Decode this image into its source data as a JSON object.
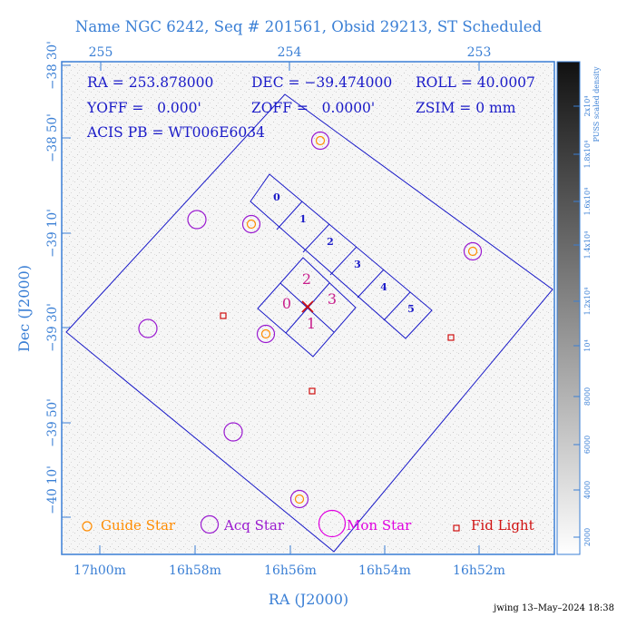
{
  "title": "Name NGC 6242, Seq # 201561, Obsid 29213, ST Scheduled",
  "header": {
    "ra": "RA = 253.878000",
    "dec": "DEC = −39.474000",
    "roll": "ROLL = 40.0007",
    "yoff": "YOFF =   0.000'",
    "zoff": "ZOFF =   0.0000'",
    "zsim": "ZSIM = 0 mm",
    "acis": "ACIS PB = WT006E6034"
  },
  "top_ticks": [
    "255",
    "254",
    "253"
  ],
  "left_ticks": [
    "−38 30'",
    "−38 50'",
    "−39 10'",
    "−39 30'",
    "−39 50'",
    "−40 10'"
  ],
  "bottom_ticks": [
    "17h00m",
    "16h58m",
    "16h56m",
    "16h54m",
    "16h52m"
  ],
  "xlabel": "RA (J2000)",
  "ylabel": "Dec (J2000)",
  "colorbar": {
    "label": "PUSS scaled density",
    "ticks": [
      "2000",
      "4000",
      "6000",
      "8000",
      "10⁴",
      "1.2x10⁴",
      "1.4x10⁴",
      "1.6x10⁴",
      "1.8x10⁴",
      "2x10⁴"
    ]
  },
  "acis_i_labels": [
    "0",
    "1",
    "2",
    "3"
  ],
  "acis_s_labels": [
    "0",
    "1",
    "2",
    "3",
    "4",
    "5"
  ],
  "legend": {
    "guide": "Guide Star",
    "acq": "Acq Star",
    "mon": "Mon Star",
    "fid": "Fid Light"
  },
  "footer": "jwing 13–May–2024 18:38",
  "colors": {
    "frame": "#3a7fd5",
    "detector": "#1a1ac8",
    "guide": "#ff8c00",
    "acq": "#9a1ad0",
    "mon": "#e000e0",
    "fid": "#d01010",
    "ccd_label": "#c81e8c"
  }
}
